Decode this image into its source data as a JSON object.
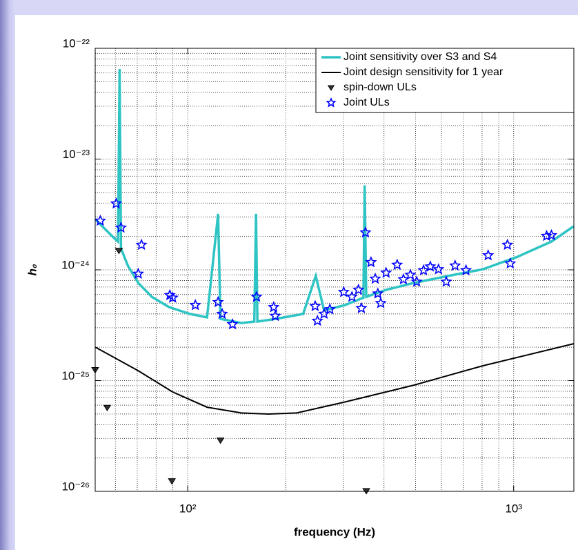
{
  "chart_data": {
    "type": "line",
    "xlabel": "frequency (Hz)",
    "ylabel": "h₀",
    "xscale": "log",
    "yscale": "log",
    "grid": true,
    "legend": "upper right",
    "xlim": [
      52,
      1530
    ],
    "ylim": [
      1e-26,
      1e-22
    ],
    "xticks": [
      {
        "value": 100,
        "label": "10²"
      },
      {
        "value": 1000,
        "label": "10³"
      }
    ],
    "yticks": [
      {
        "value": 1e-26,
        "label": "10⁻²⁶"
      },
      {
        "value": 1e-25,
        "label": "10⁻²⁵"
      },
      {
        "value": 1e-24,
        "label": "10⁻²⁴"
      },
      {
        "value": 1e-23,
        "label": "10⁻²³"
      },
      {
        "value": 1e-22,
        "label": "10⁻²²"
      }
    ],
    "xminorticks": [
      60,
      70,
      80,
      90,
      200,
      300,
      400,
      500,
      600,
      700,
      800,
      900
    ],
    "yminorticks": [
      2e-26,
      3e-26,
      4e-26,
      5e-26,
      6e-26,
      7e-26,
      8e-26,
      9e-26,
      2e-25,
      3e-25,
      4e-25,
      5e-25,
      6e-25,
      7e-25,
      8e-25,
      9e-25,
      2e-24,
      3e-24,
      4e-24,
      5e-24,
      6e-24,
      7e-24,
      8e-24,
      9e-24,
      2e-23,
      3e-23,
      4e-23,
      5e-23,
      6e-23,
      7e-23,
      8e-23,
      9e-23
    ],
    "series": [
      {
        "name": "Joint sensitivity over S3 and S4",
        "style": "line",
        "color": "#2ec4c4",
        "x": [
          52.1,
          55.2,
          59.4,
          61.1,
          61.8,
          62.4,
          65.5,
          70.5,
          77.6,
          87.7,
          101.5,
          114.6,
          123.9,
          126,
          146,
          160,
          162,
          163.6,
          186.6,
          226,
          247,
          262,
          303,
          346,
          349,
          353,
          406,
          493,
          629,
          803,
          1026,
          1307,
          1527
        ],
        "values": [
          2.85e-24,
          2.4e-24,
          1.94e-24,
          1.8e-24,
          6.5e-23,
          1.56e-24,
          1.09e-24,
          7.6e-25,
          5.7e-25,
          4.6e-25,
          4e-25,
          3.72e-25,
          3.2e-24,
          3.61e-25,
          3.31e-25,
          3.41e-25,
          3.2e-24,
          3.41e-25,
          3.61e-25,
          4e-25,
          8.8e-25,
          4.3e-25,
          4.8e-25,
          5.6e-25,
          5.8e-24,
          5.7e-25,
          6.6e-25,
          7.6e-25,
          8.8e-25,
          1.01e-24,
          1.31e-24,
          1.8e-24,
          2.47e-24
        ]
      },
      {
        "name": "Joint design sensitivity for 1 year",
        "style": "line",
        "color": "#000000",
        "x": [
          52.1,
          70.4,
          89.8,
          114.6,
          146,
          177,
          216,
          303,
          494,
          803,
          1527
        ],
        "values": [
          2e-25,
          1.23e-25,
          7.9e-26,
          5.75e-26,
          5.1e-26,
          4.99e-26,
          5.1e-26,
          6.4e-26,
          9.1e-26,
          1.36e-25,
          2.15e-25
        ]
      },
      {
        "name": "spin-down ULs",
        "style": "marker",
        "marker": "triangle",
        "color": "#000000",
        "x": [
          52,
          56.6,
          61.5,
          89.4,
          126,
          353
        ],
        "values": [
          1.25e-25,
          5.7e-26,
          1.49e-24,
          1.24e-26,
          2.89e-26,
          1.01e-26
        ]
      },
      {
        "name": "Joint ULs",
        "style": "marker",
        "marker": "star",
        "color": "#0000ff",
        "x": [
          53.9,
          60.3,
          62.4,
          72.1,
          70.5,
          88.1,
          89.9,
          105.5,
          123.9,
          127.5,
          137.2,
          162.6,
          183.5,
          185.6,
          246,
          250,
          262,
          273,
          301,
          319,
          334,
          341,
          351,
          365,
          376,
          383,
          391,
          406,
          439,
          459,
          482,
          504,
          529,
          555,
          588,
          621,
          661,
          714,
          835,
          957,
          976,
          1262,
          1306
        ],
        "values": [
          2.77e-24,
          3.96e-24,
          2.4e-24,
          1.68e-24,
          9.2e-25,
          5.9e-25,
          5.6e-25,
          4.8e-25,
          5.1e-25,
          4e-25,
          3.22e-25,
          5.7e-25,
          4.6e-25,
          3.83e-25,
          4.7e-25,
          3.46e-25,
          4e-25,
          4.4e-25,
          6.3e-25,
          5.7e-25,
          6.6e-25,
          4.5e-25,
          2.17e-24,
          1.17e-24,
          8.3e-25,
          6.1e-25,
          5e-25,
          9.4e-25,
          1.11e-24,
          8.2e-25,
          9e-25,
          7.8e-25,
          9.9e-25,
          1.07e-24,
          1.01e-24,
          7.8e-25,
          1.09e-24,
          9.9e-25,
          1.35e-24,
          1.68e-24,
          1.14e-24,
          2.02e-24,
          2.05e-24
        ]
      }
    ]
  }
}
